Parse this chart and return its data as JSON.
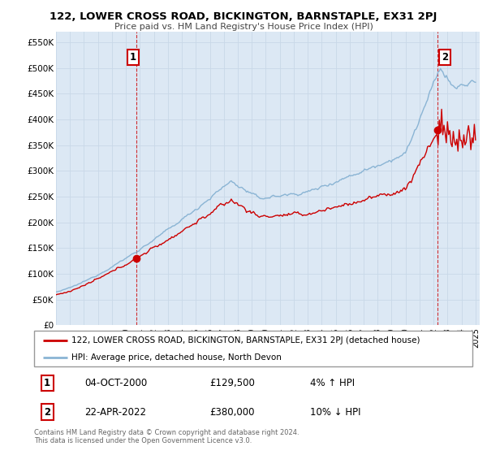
{
  "title": "122, LOWER CROSS ROAD, BICKINGTON, BARNSTAPLE, EX31 2PJ",
  "subtitle": "Price paid vs. HM Land Registry's House Price Index (HPI)",
  "ylabel_ticks": [
    "£0",
    "£50K",
    "£100K",
    "£150K",
    "£200K",
    "£250K",
    "£300K",
    "£350K",
    "£400K",
    "£450K",
    "£500K",
    "£550K"
  ],
  "ytick_values": [
    0,
    50000,
    100000,
    150000,
    200000,
    250000,
    300000,
    350000,
    400000,
    450000,
    500000,
    550000
  ],
  "ylim": [
    0,
    570000
  ],
  "xlim_start": 1995.0,
  "xlim_end": 2025.3,
  "hpi_color": "#8ab4d4",
  "price_color": "#cc0000",
  "plot_bg_color": "#dce8f4",
  "sale1_x": 2000.75,
  "sale1_y": 129500,
  "sale2_x": 2022.3,
  "sale2_y": 380000,
  "annotation1": "1",
  "annotation2": "2",
  "legend_line1": "122, LOWER CROSS ROAD, BICKINGTON, BARNSTAPLE, EX31 2PJ (detached house)",
  "legend_line2": "HPI: Average price, detached house, North Devon",
  "table_row1_num": "1",
  "table_row1_date": "04-OCT-2000",
  "table_row1_price": "£129,500",
  "table_row1_hpi": "4% ↑ HPI",
  "table_row2_num": "2",
  "table_row2_date": "22-APR-2022",
  "table_row2_price": "£380,000",
  "table_row2_hpi": "10% ↓ HPI",
  "footer": "Contains HM Land Registry data © Crown copyright and database right 2024.\nThis data is licensed under the Open Government Licence v3.0.",
  "background_color": "#ffffff",
  "grid_color": "#c8d8e8"
}
